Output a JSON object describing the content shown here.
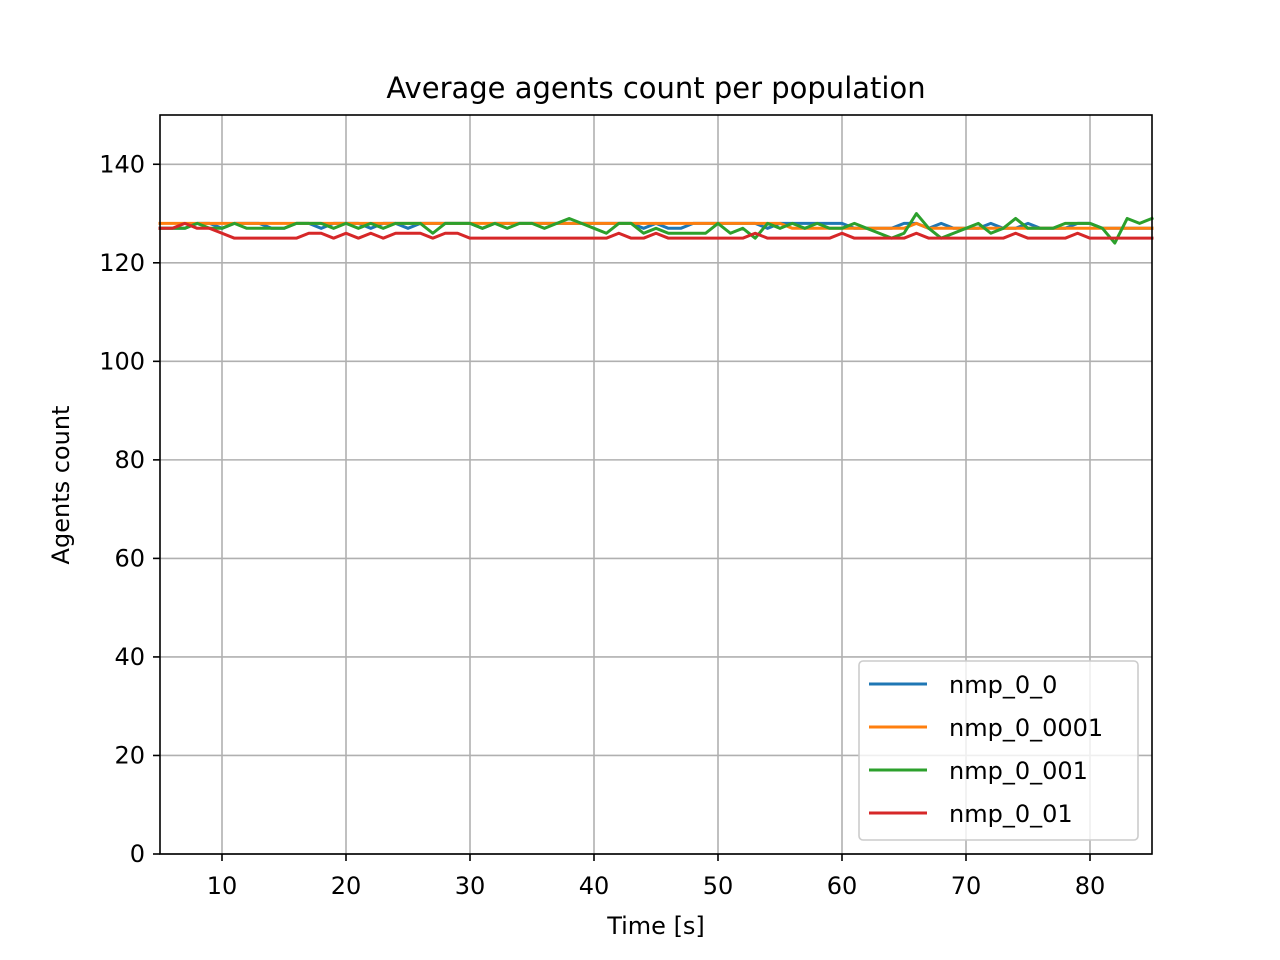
{
  "chart_data": {
    "type": "line",
    "title": "Average agents count per population",
    "xlabel": "Time [s]",
    "ylabel": "Agents count",
    "xlim": [
      5,
      85
    ],
    "ylim": [
      0,
      150
    ],
    "xticks": [
      10,
      20,
      30,
      40,
      50,
      60,
      70,
      80
    ],
    "yticks": [
      0,
      20,
      40,
      60,
      80,
      100,
      120,
      140
    ],
    "grid": true,
    "legend_position": "lower-right",
    "x": [
      5,
      6,
      7,
      8,
      9,
      10,
      11,
      12,
      13,
      14,
      15,
      16,
      17,
      18,
      19,
      20,
      21,
      22,
      23,
      24,
      25,
      26,
      27,
      28,
      29,
      30,
      31,
      32,
      33,
      34,
      35,
      36,
      37,
      38,
      39,
      40,
      41,
      42,
      43,
      44,
      45,
      46,
      47,
      48,
      49,
      50,
      51,
      52,
      53,
      54,
      55,
      56,
      57,
      58,
      59,
      60,
      61,
      62,
      63,
      64,
      65,
      66,
      67,
      68,
      69,
      70,
      71,
      72,
      73,
      74,
      75,
      76,
      77,
      78,
      79,
      80,
      81,
      82,
      83,
      84,
      85
    ],
    "series": [
      {
        "name": "nmp_0_0",
        "color": "#1f77b4",
        "values": [
          127,
          127,
          127,
          128,
          128,
          127,
          128,
          128,
          128,
          127,
          127,
          128,
          128,
          127,
          128,
          128,
          128,
          127,
          128,
          128,
          127,
          128,
          128,
          128,
          128,
          128,
          127,
          128,
          128,
          128,
          128,
          128,
          128,
          128,
          128,
          128,
          128,
          128,
          128,
          127,
          128,
          127,
          127,
          128,
          128,
          128,
          128,
          128,
          128,
          127,
          128,
          128,
          128,
          128,
          128,
          128,
          127,
          127,
          127,
          127,
          128,
          128,
          127,
          128,
          127,
          127,
          127,
          128,
          127,
          127,
          128,
          127,
          127,
          127,
          128,
          128,
          127,
          127,
          127,
          127,
          127
        ]
      },
      {
        "name": "nmp_0_0001",
        "color": "#ff7f0e",
        "values": [
          128,
          128,
          128,
          128,
          128,
          128,
          128,
          128,
          128,
          128,
          128,
          128,
          128,
          128,
          128,
          128,
          128,
          128,
          128,
          128,
          128,
          128,
          128,
          128,
          128,
          128,
          128,
          128,
          128,
          128,
          128,
          128,
          128,
          128,
          128,
          128,
          128,
          128,
          128,
          128,
          128,
          128,
          128,
          128,
          128,
          128,
          128,
          128,
          128,
          128,
          128,
          127,
          127,
          127,
          127,
          127,
          127,
          127,
          127,
          127,
          127,
          128,
          127,
          127,
          127,
          127,
          127,
          127,
          127,
          127,
          127,
          127,
          127,
          127,
          127,
          127,
          127,
          127,
          127,
          127,
          127
        ]
      },
      {
        "name": "nmp_0_001",
        "color": "#2ca02c",
        "values": [
          127,
          127,
          127,
          128,
          127,
          127,
          128,
          127,
          127,
          127,
          127,
          128,
          128,
          128,
          127,
          128,
          127,
          128,
          127,
          128,
          128,
          128,
          126,
          128,
          128,
          128,
          127,
          128,
          127,
          128,
          128,
          127,
          128,
          129,
          128,
          127,
          126,
          128,
          128,
          126,
          127,
          126,
          126,
          126,
          126,
          128,
          126,
          127,
          125,
          128,
          127,
          128,
          127,
          128,
          127,
          127,
          128,
          127,
          126,
          125,
          126,
          130,
          127,
          125,
          126,
          127,
          128,
          126,
          127,
          129,
          127,
          127,
          127,
          128,
          128,
          128,
          127,
          124,
          129,
          128,
          129
        ]
      },
      {
        "name": "nmp_0_01",
        "color": "#d62728",
        "values": [
          127,
          127,
          128,
          127,
          127,
          126,
          125,
          125,
          125,
          125,
          125,
          125,
          126,
          126,
          125,
          126,
          125,
          126,
          125,
          126,
          126,
          126,
          125,
          126,
          126,
          125,
          125,
          125,
          125,
          125,
          125,
          125,
          125,
          125,
          125,
          125,
          125,
          126,
          125,
          125,
          126,
          125,
          125,
          125,
          125,
          125,
          125,
          125,
          126,
          125,
          125,
          125,
          125,
          125,
          125,
          126,
          125,
          125,
          125,
          125,
          125,
          126,
          125,
          125,
          125,
          125,
          125,
          125,
          125,
          126,
          125,
          125,
          125,
          125,
          126,
          125,
          125,
          125,
          125,
          125,
          125
        ]
      }
    ]
  }
}
